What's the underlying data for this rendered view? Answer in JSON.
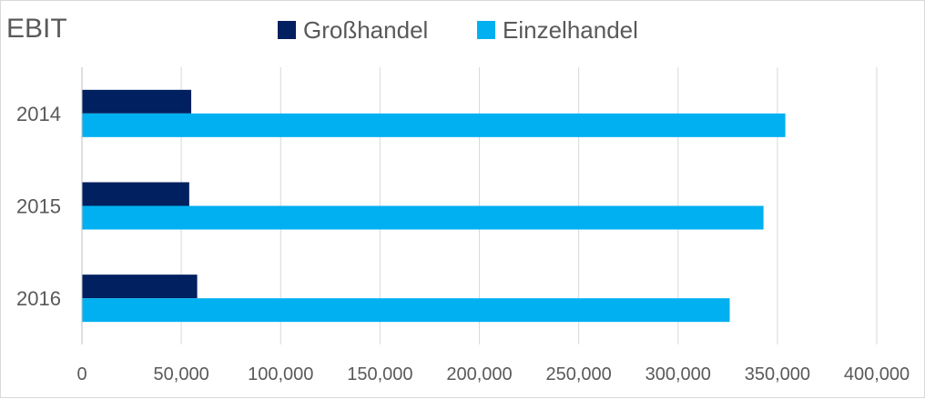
{
  "chart_data": {
    "type": "bar",
    "orientation": "horizontal",
    "title": "EBIT",
    "categories": [
      "2014",
      "2015",
      "2016"
    ],
    "series": [
      {
        "name": "Großhandel",
        "color": "#002060",
        "values": [
          55000,
          54000,
          58000
        ]
      },
      {
        "name": "Einzelhandel",
        "color": "#00b0f0",
        "values": [
          354000,
          343000,
          326000
        ]
      }
    ],
    "xlim": [
      0,
      400000
    ],
    "x_ticks": [
      0,
      50000,
      100000,
      150000,
      200000,
      250000,
      300000,
      350000,
      400000
    ],
    "x_tick_labels": [
      "0",
      "50,000",
      "100,000",
      "150,000",
      "200,000",
      "250,000",
      "300,000",
      "350,000",
      "400,000"
    ],
    "grid": "vertical",
    "legend_position": "top"
  }
}
